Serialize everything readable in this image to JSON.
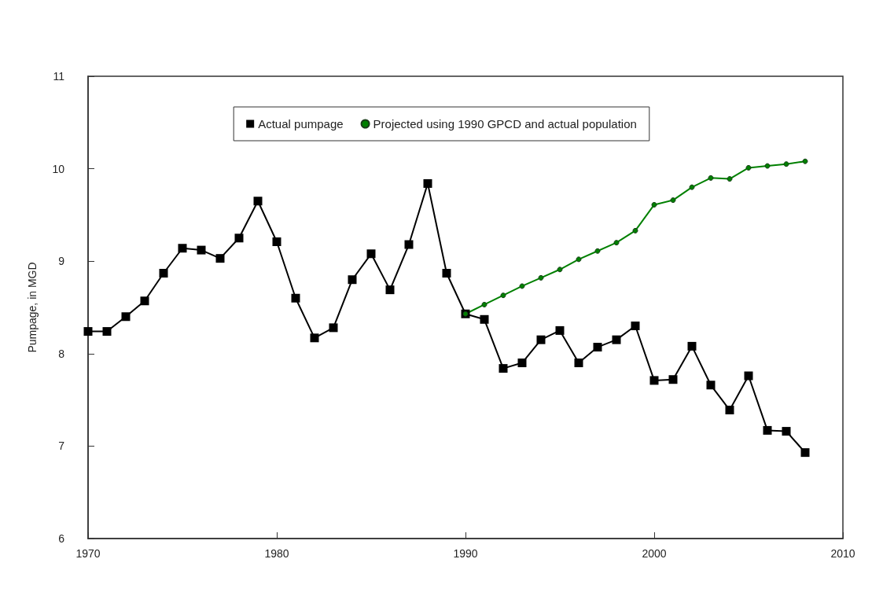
{
  "chart_data": {
    "type": "line",
    "ylabel": "Pumpage, in MGD",
    "xlim": [
      1970,
      2010
    ],
    "xticks": [
      1970,
      1980,
      1990,
      2000,
      2010
    ],
    "ylim": [
      6,
      11
    ],
    "yticks": [
      6,
      7,
      8,
      9,
      10,
      11
    ],
    "grid": false,
    "legend": "top",
    "line_style": "solid",
    "series": [
      {
        "name": "Actual pumpage",
        "color": "#000000",
        "marker": "square",
        "x": [
          1970,
          1971,
          1972,
          1973,
          1974,
          1975,
          1976,
          1977,
          1978,
          1979,
          1980,
          1981,
          1982,
          1983,
          1984,
          1985,
          1986,
          1987,
          1988,
          1989,
          1990,
          1991,
          1992,
          1993,
          1994,
          1995,
          1996,
          1997,
          1998,
          1999,
          2000,
          2001,
          2002,
          2003,
          2004,
          2005,
          2006,
          2007,
          2008
        ],
        "values": [
          8.24,
          8.24,
          8.4,
          8.57,
          8.87,
          9.14,
          9.12,
          9.03,
          9.25,
          9.65,
          9.21,
          8.6,
          8.17,
          8.28,
          8.8,
          9.08,
          8.69,
          9.18,
          9.84,
          8.87,
          8.43,
          8.37,
          7.84,
          7.9,
          8.15,
          8.25,
          7.9,
          8.07,
          8.15,
          8.3,
          7.71,
          7.72,
          8.08,
          7.66,
          7.39,
          7.76,
          7.17,
          7.16,
          6.93
        ]
      },
      {
        "name": "Projected using 1990 GPCD and actual population",
        "color": "#008000",
        "marker": "circle",
        "x": [
          1990,
          1991,
          1992,
          1993,
          1994,
          1995,
          1996,
          1997,
          1998,
          1999,
          2000,
          2001,
          2002,
          2003,
          2004,
          2005,
          2006,
          2007,
          2008
        ],
        "values": [
          8.43,
          8.53,
          8.63,
          8.73,
          8.82,
          8.91,
          9.02,
          9.11,
          9.2,
          9.33,
          9.61,
          9.66,
          9.8,
          9.9,
          9.89,
          10.01,
          10.03,
          10.05,
          10.08
        ]
      }
    ]
  }
}
